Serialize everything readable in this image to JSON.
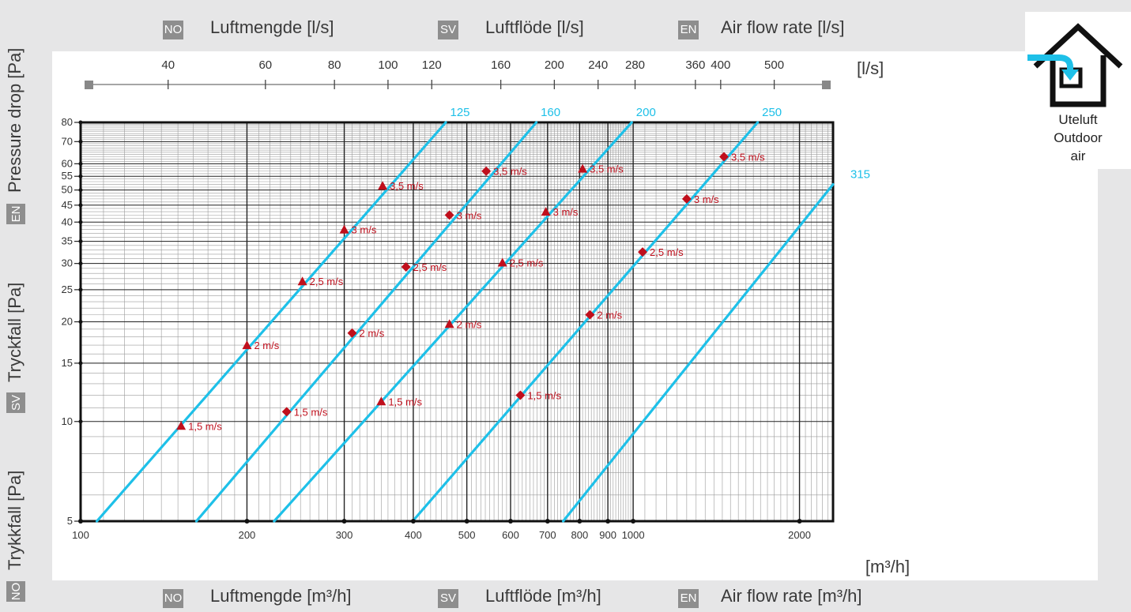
{
  "header_top": {
    "no_badge": "NO",
    "no_label": "Luftmengde [l/s]",
    "sv_badge": "SV",
    "sv_label": "Luftflöde [l/s]",
    "en_badge": "EN",
    "en_label": "Air flow rate [l/s]"
  },
  "header_bottom": {
    "no_badge": "NO",
    "no_label": "Luftmengde [m³/h]",
    "sv_badge": "SV",
    "sv_label": "Luftflöde [m³/h]",
    "en_badge": "EN",
    "en_label": "Air flow rate [m³/h]"
  },
  "left_axis": {
    "en_badge": "EN",
    "en_label": "Pressure drop [Pa]",
    "sv_badge": "SV",
    "sv_label": "Tryckfall [Pa]",
    "no_badge": "NO",
    "no_label": "Trykkfall [Pa]"
  },
  "house": {
    "line1": "Uteluft",
    "line2": "Outdoor",
    "line3": "air"
  },
  "colors": {
    "duct_line": "#1ec0e8",
    "marker": "#c00f1c",
    "grid": "#888888",
    "frame": "#111111"
  },
  "chart_data": {
    "type": "line",
    "xscale": "log",
    "yscale": "log",
    "xlim": [
      100,
      2300
    ],
    "ylim": [
      5,
      80
    ],
    "xlabel": "[m³/h]",
    "x_ticks": [
      100,
      200,
      300,
      400,
      500,
      600,
      700,
      800,
      900,
      1000,
      2000
    ],
    "x_tick_labels": [
      "100",
      "200",
      "300",
      "400",
      "500",
      "600",
      "700",
      "800",
      "900",
      "1000",
      "2000"
    ],
    "y_ticks": [
      5,
      10,
      15,
      20,
      25,
      30,
      35,
      40,
      45,
      50,
      55,
      60,
      70,
      80
    ],
    "y_tick_labels": [
      "5",
      "10",
      "15",
      "20",
      "25",
      "30",
      "35",
      "40",
      "45",
      "50",
      "55",
      "60",
      "70",
      "80"
    ],
    "secondary_x_unit": "[l/s]",
    "secondary_x_ticks": [
      40,
      60,
      80,
      100,
      120,
      160,
      200,
      240,
      280,
      360,
      400,
      500
    ],
    "secondary_x_tick_labels": [
      "40",
      "60",
      "80",
      "100",
      "120",
      "160",
      "200",
      "240",
      "280",
      "360",
      "400",
      "500"
    ],
    "grid": true,
    "series": [
      {
        "name": "125",
        "points": [
          [
            107,
            5
          ],
          [
            458,
            80
          ]
        ],
        "markers": [
          {
            "x": 152,
            "y": 9.7,
            "label": "1,5 m/s",
            "shape": "triangle"
          },
          {
            "x": 200,
            "y": 17,
            "label": "2 m/s",
            "shape": "triangle"
          },
          {
            "x": 252,
            "y": 26.5,
            "label": "2,5 m/s",
            "shape": "triangle"
          },
          {
            "x": 300,
            "y": 38,
            "label": "3 m/s",
            "shape": "triangle"
          },
          {
            "x": 352,
            "y": 51.5,
            "label": "3,5 m/s",
            "shape": "triangle"
          }
        ]
      },
      {
        "name": "160",
        "points": [
          [
            162,
            5
          ],
          [
            668,
            80
          ]
        ],
        "markers": [
          {
            "x": 236,
            "y": 10.7,
            "label": "1,5 m/s",
            "shape": "diamond"
          },
          {
            "x": 310,
            "y": 18.5,
            "label": "2 m/s",
            "shape": "diamond"
          },
          {
            "x": 388,
            "y": 29.3,
            "label": "2,5 m/s",
            "shape": "diamond"
          },
          {
            "x": 465,
            "y": 42,
            "label": "3 m/s",
            "shape": "diamond"
          },
          {
            "x": 542,
            "y": 57,
            "label": "3,5 m/s",
            "shape": "diamond"
          }
        ]
      },
      {
        "name": "200",
        "points": [
          [
            224,
            5
          ],
          [
            994,
            80
          ]
        ],
        "markers": [
          {
            "x": 350,
            "y": 11.5,
            "label": "1,5 m/s",
            "shape": "triangle"
          },
          {
            "x": 465,
            "y": 19.7,
            "label": "2 m/s",
            "shape": "triangle"
          },
          {
            "x": 580,
            "y": 30.2,
            "label": "2,5 m/s",
            "shape": "triangle"
          },
          {
            "x": 695,
            "y": 43,
            "label": "3 m/s",
            "shape": "triangle"
          },
          {
            "x": 810,
            "y": 58,
            "label": "3,5 m/s",
            "shape": "triangle"
          }
        ]
      },
      {
        "name": "250",
        "points": [
          [
            399,
            5
          ],
          [
            1680,
            80
          ]
        ],
        "markers": [
          {
            "x": 625,
            "y": 12,
            "label": "1,5 m/s",
            "shape": "diamond"
          },
          {
            "x": 835,
            "y": 21,
            "label": "2 m/s",
            "shape": "diamond"
          },
          {
            "x": 1040,
            "y": 32.5,
            "label": "2,5 m/s",
            "shape": "diamond"
          },
          {
            "x": 1250,
            "y": 47,
            "label": "3 m/s",
            "shape": "diamond"
          },
          {
            "x": 1460,
            "y": 63,
            "label": "3,5 m/s",
            "shape": "diamond"
          }
        ]
      },
      {
        "name": "315",
        "points": [
          [
            747,
            5
          ],
          [
            2300,
            52
          ]
        ],
        "markers": []
      }
    ]
  }
}
